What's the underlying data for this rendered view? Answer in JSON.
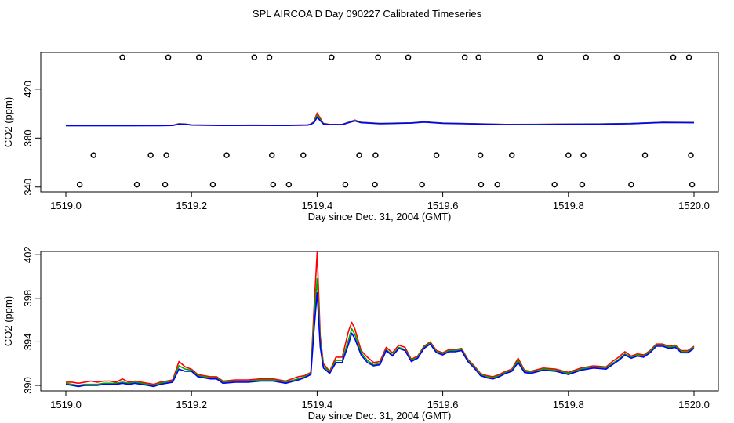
{
  "page_title": "SPL AIRCOA D  Day 090227  Calibrated Timeseries",
  "colors": {
    "series_1": "#ff0000",
    "series_2": "#00aa00",
    "series_3": "#0000ff",
    "points": "#000000"
  },
  "chart_data": [
    {
      "type": "line+scatter",
      "xlabel": "Day since Dec. 31, 2004 (GMT)",
      "ylabel": "CO2 (ppm)",
      "xlim": [
        1519.0,
        1520.0
      ],
      "ylim": [
        336,
        450
      ],
      "xticks": [
        "1519.0",
        "1519.2",
        "1519.4",
        "1519.6",
        "1519.8",
        "1520.0"
      ],
      "yticks": [
        "340",
        "380",
        "420"
      ],
      "ytick_values": [
        340,
        380,
        420
      ],
      "grid": false,
      "x": [
        1519.0,
        1519.05,
        1519.1,
        1519.15,
        1519.17,
        1519.18,
        1519.19,
        1519.2,
        1519.25,
        1519.3,
        1519.35,
        1519.385,
        1519.39,
        1519.395,
        1519.4,
        1519.41,
        1519.42,
        1519.44,
        1519.45,
        1519.46,
        1519.47,
        1519.5,
        1519.55,
        1519.57,
        1519.6,
        1519.65,
        1519.7,
        1519.75,
        1519.8,
        1519.85,
        1519.9,
        1519.95,
        1520.0
      ],
      "series": [
        {
          "name": "red",
          "values": [
            390.3,
            390.3,
            390.3,
            390.4,
            390.5,
            391.8,
            391.5,
            390.8,
            390.5,
            390.6,
            390.5,
            390.8,
            391.5,
            393.5,
            400.5,
            392.0,
            391.2,
            391.2,
            393.0,
            394.8,
            393.0,
            392.0,
            392.5,
            393.3,
            392.3,
            391.8,
            391.2,
            391.3,
            391.5,
            391.6,
            392.0,
            393.0,
            392.8
          ]
        },
        {
          "name": "green",
          "values": [
            390.2,
            390.2,
            390.2,
            390.3,
            390.4,
            391.6,
            391.4,
            390.7,
            390.4,
            390.5,
            390.4,
            390.7,
            391.4,
            393.0,
            398.5,
            391.8,
            391.1,
            391.1,
            392.8,
            394.4,
            392.8,
            391.9,
            392.4,
            393.2,
            392.2,
            391.7,
            391.1,
            391.2,
            391.4,
            391.5,
            391.9,
            392.9,
            392.7
          ]
        },
        {
          "name": "blue",
          "values": [
            390.1,
            390.1,
            390.1,
            390.2,
            390.3,
            391.4,
            391.3,
            390.6,
            390.3,
            390.4,
            390.3,
            390.6,
            391.3,
            392.6,
            397.0,
            391.6,
            391.0,
            391.0,
            392.6,
            394.0,
            392.6,
            391.8,
            392.3,
            393.1,
            392.1,
            391.6,
            391.0,
            391.1,
            391.3,
            391.4,
            391.8,
            392.8,
            392.6
          ]
        }
      ],
      "points": {
        "levels": [
          446,
          366,
          342
        ],
        "x": [
          [
            1519.09,
            1519.163,
            1519.212,
            1519.3,
            1519.324,
            1519.423,
            1519.497,
            1519.545,
            1519.635,
            1519.657,
            1519.755,
            1519.828,
            1519.877,
            1519.967,
            1519.992
          ],
          [
            1519.044,
            1519.135,
            1519.16,
            1519.256,
            1519.328,
            1519.378,
            1519.467,
            1519.493,
            1519.59,
            1519.66,
            1519.71,
            1519.8,
            1519.824,
            1519.922,
            1519.995
          ],
          [
            1519.022,
            1519.113,
            1519.158,
            1519.234,
            1519.33,
            1519.355,
            1519.445,
            1519.492,
            1519.567,
            1519.661,
            1519.687,
            1519.778,
            1519.822,
            1519.9,
            1519.997
          ]
        ]
      }
    },
    {
      "type": "line",
      "xlabel": "Day since Dec. 31, 2004 (GMT)",
      "ylabel": "CO2 (ppm)",
      "xlim": [
        1519.0,
        1520.0
      ],
      "ylim": [
        389.5,
        402.3
      ],
      "xticks": [
        "1519.0",
        "1519.2",
        "1519.4",
        "1519.6",
        "1519.8",
        "1520.0"
      ],
      "yticks": [
        "390",
        "394",
        "398",
        "402"
      ],
      "ytick_values": [
        390,
        394,
        398,
        402
      ],
      "grid": false,
      "x": [
        1519.0,
        1519.01,
        1519.02,
        1519.03,
        1519.04,
        1519.05,
        1519.06,
        1519.07,
        1519.08,
        1519.09,
        1519.1,
        1519.11,
        1519.12,
        1519.13,
        1519.14,
        1519.15,
        1519.16,
        1519.17,
        1519.18,
        1519.19,
        1519.2,
        1519.21,
        1519.22,
        1519.23,
        1519.24,
        1519.25,
        1519.27,
        1519.29,
        1519.31,
        1519.33,
        1519.35,
        1519.37,
        1519.38,
        1519.39,
        1519.395,
        1519.4,
        1519.405,
        1519.41,
        1519.42,
        1519.43,
        1519.44,
        1519.45,
        1519.455,
        1519.46,
        1519.47,
        1519.48,
        1519.49,
        1519.5,
        1519.51,
        1519.52,
        1519.53,
        1519.54,
        1519.55,
        1519.56,
        1519.57,
        1519.58,
        1519.59,
        1519.6,
        1519.61,
        1519.62,
        1519.63,
        1519.64,
        1519.65,
        1519.66,
        1519.67,
        1519.68,
        1519.69,
        1519.7,
        1519.71,
        1519.72,
        1519.73,
        1519.74,
        1519.76,
        1519.78,
        1519.8,
        1519.82,
        1519.84,
        1519.86,
        1519.87,
        1519.88,
        1519.89,
        1519.9,
        1519.91,
        1519.92,
        1519.93,
        1519.94,
        1519.95,
        1519.96,
        1519.97,
        1519.98,
        1519.99,
        1520.0
      ],
      "series": [
        {
          "name": "red",
          "values": [
            390.3,
            390.3,
            390.2,
            390.3,
            390.4,
            390.3,
            390.4,
            390.4,
            390.3,
            390.6,
            390.3,
            390.4,
            390.3,
            390.2,
            390.1,
            390.3,
            390.4,
            390.5,
            392.2,
            391.7,
            391.5,
            391.0,
            390.9,
            390.8,
            390.8,
            390.4,
            390.5,
            390.5,
            390.6,
            390.6,
            390.4,
            390.8,
            390.9,
            391.2,
            397.0,
            402.2,
            394.5,
            392.0,
            391.3,
            392.6,
            392.6,
            395.0,
            395.8,
            395.2,
            393.2,
            392.6,
            392.1,
            392.2,
            393.5,
            393.0,
            393.7,
            393.5,
            392.4,
            392.7,
            393.6,
            394.0,
            393.2,
            393.0,
            393.3,
            393.3,
            393.4,
            392.4,
            391.8,
            391.1,
            390.9,
            390.8,
            391.0,
            391.3,
            391.5,
            392.5,
            391.4,
            391.3,
            391.6,
            391.5,
            391.2,
            391.6,
            391.8,
            391.7,
            392.2,
            392.6,
            393.1,
            392.7,
            392.9,
            392.8,
            393.2,
            393.8,
            393.8,
            393.6,
            393.7,
            393.2,
            393.2,
            393.6
          ]
        },
        {
          "name": "green",
          "values": [
            390.2,
            390.1,
            390.0,
            390.1,
            390.1,
            390.1,
            390.2,
            390.2,
            390.2,
            390.3,
            390.2,
            390.3,
            390.2,
            390.1,
            390.0,
            390.2,
            390.3,
            390.4,
            391.8,
            391.5,
            391.4,
            390.9,
            390.8,
            390.7,
            390.7,
            390.3,
            390.4,
            390.4,
            390.5,
            390.5,
            390.3,
            390.6,
            390.8,
            391.1,
            396.0,
            399.8,
            394.0,
            391.8,
            391.2,
            392.3,
            392.3,
            394.2,
            395.2,
            394.7,
            393.0,
            392.3,
            391.9,
            392.0,
            393.3,
            392.8,
            393.5,
            393.3,
            392.3,
            392.6,
            393.5,
            393.9,
            393.1,
            392.9,
            393.2,
            393.2,
            393.3,
            392.3,
            391.7,
            391.0,
            390.8,
            390.7,
            390.9,
            391.2,
            391.4,
            392.3,
            391.3,
            391.2,
            391.5,
            391.4,
            391.1,
            391.5,
            391.7,
            391.6,
            392.0,
            392.4,
            392.9,
            392.6,
            392.8,
            392.7,
            393.1,
            393.7,
            393.7,
            393.5,
            393.6,
            393.1,
            393.1,
            393.5
          ]
        },
        {
          "name": "blue",
          "values": [
            390.1,
            390.0,
            389.9,
            390.0,
            390.0,
            390.0,
            390.1,
            390.1,
            390.1,
            390.2,
            390.1,
            390.2,
            390.1,
            390.0,
            389.9,
            390.1,
            390.2,
            390.3,
            391.5,
            391.3,
            391.3,
            390.8,
            390.7,
            390.6,
            390.6,
            390.2,
            390.3,
            390.3,
            390.4,
            390.4,
            390.2,
            390.5,
            390.7,
            391.0,
            395.0,
            398.5,
            393.5,
            391.6,
            391.1,
            392.1,
            392.1,
            393.8,
            394.8,
            394.3,
            392.8,
            392.1,
            391.8,
            391.9,
            393.2,
            392.7,
            393.4,
            393.2,
            392.2,
            392.5,
            393.4,
            393.8,
            393.0,
            392.8,
            393.1,
            393.1,
            393.2,
            392.2,
            391.6,
            390.9,
            390.7,
            390.6,
            390.8,
            391.1,
            391.3,
            392.1,
            391.2,
            391.1,
            391.4,
            391.3,
            391.0,
            391.4,
            391.6,
            391.5,
            391.9,
            392.3,
            392.8,
            392.5,
            392.7,
            392.6,
            393.0,
            393.6,
            393.6,
            393.4,
            393.5,
            393.0,
            393.0,
            393.4
          ]
        }
      ]
    }
  ]
}
